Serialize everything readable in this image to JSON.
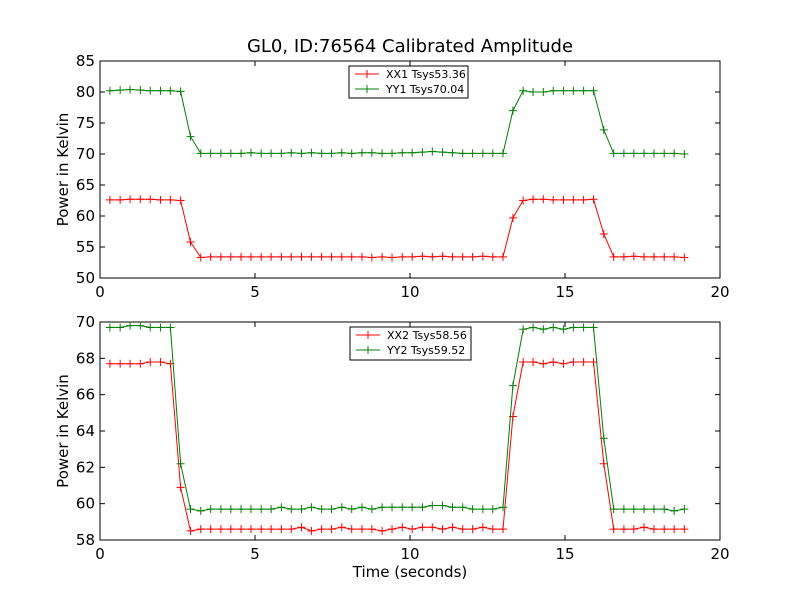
{
  "chart_data": [
    {
      "type": "line",
      "title": "GL0, ID:76564 Calibrated Amplitude",
      "xlabel": "",
      "ylabel": "Power in Kelvin",
      "xlim": [
        0,
        20
      ],
      "ylim": [
        50,
        85
      ],
      "xticks": [
        "0",
        "5",
        "10",
        "15",
        "20"
      ],
      "yticks": [
        "50",
        "55",
        "60",
        "65",
        "70",
        "75",
        "80",
        "85"
      ],
      "grid": false,
      "legend": "top-center",
      "x": [
        0.32,
        0.65,
        0.97,
        1.3,
        1.62,
        1.95,
        2.27,
        2.6,
        2.92,
        3.25,
        3.57,
        3.9,
        4.22,
        4.55,
        4.87,
        5.2,
        5.52,
        5.85,
        6.17,
        6.5,
        6.82,
        7.15,
        7.47,
        7.8,
        8.12,
        8.45,
        8.77,
        9.1,
        9.42,
        9.75,
        10.07,
        10.4,
        10.72,
        11.05,
        11.37,
        11.7,
        12.02,
        12.35,
        12.67,
        13.0,
        13.32,
        13.65,
        13.97,
        14.3,
        14.62,
        14.95,
        15.27,
        15.6,
        15.92,
        16.25,
        16.57,
        16.9,
        17.22,
        17.55,
        17.87,
        18.2,
        18.52,
        18.85
      ],
      "series": [
        {
          "name": "XX1 Tsys53.36",
          "color": "#ff0000",
          "values": [
            62.6,
            62.6,
            62.7,
            62.7,
            62.7,
            62.6,
            62.6,
            62.5,
            55.8,
            53.3,
            53.4,
            53.4,
            53.4,
            53.4,
            53.4,
            53.4,
            53.4,
            53.4,
            53.4,
            53.4,
            53.4,
            53.4,
            53.4,
            53.4,
            53.4,
            53.4,
            53.3,
            53.4,
            53.3,
            53.4,
            53.4,
            53.5,
            53.4,
            53.5,
            53.4,
            53.4,
            53.4,
            53.5,
            53.4,
            53.4,
            59.7,
            62.5,
            62.7,
            62.7,
            62.6,
            62.6,
            62.6,
            62.6,
            62.7,
            57.1,
            53.4,
            53.4,
            53.5,
            53.4,
            53.4,
            53.4,
            53.4,
            53.3
          ]
        },
        {
          "name": "YY1 Tsys70.04",
          "color": "#008000",
          "values": [
            80.2,
            80.3,
            80.4,
            80.3,
            80.2,
            80.2,
            80.2,
            80.1,
            72.8,
            70.1,
            70.1,
            70.1,
            70.1,
            70.1,
            70.2,
            70.1,
            70.1,
            70.1,
            70.2,
            70.1,
            70.2,
            70.1,
            70.1,
            70.2,
            70.1,
            70.2,
            70.2,
            70.1,
            70.1,
            70.2,
            70.2,
            70.3,
            70.4,
            70.3,
            70.2,
            70.1,
            70.1,
            70.1,
            70.1,
            70.1,
            77.0,
            80.2,
            80.0,
            80.0,
            80.2,
            80.2,
            80.2,
            80.2,
            80.2,
            73.9,
            70.1,
            70.1,
            70.1,
            70.1,
            70.1,
            70.1,
            70.1,
            70.0
          ]
        }
      ]
    },
    {
      "type": "line",
      "title": "",
      "xlabel": "Time (seconds)",
      "ylabel": "Power in Kelvin",
      "xlim": [
        0,
        20
      ],
      "ylim": [
        58,
        70
      ],
      "xticks": [
        "0",
        "5",
        "10",
        "15",
        "20"
      ],
      "yticks": [
        "58",
        "60",
        "62",
        "64",
        "66",
        "68",
        "70"
      ],
      "grid": false,
      "legend": "top-center",
      "x": [
        0.32,
        0.65,
        0.97,
        1.3,
        1.62,
        1.95,
        2.27,
        2.6,
        2.92,
        3.25,
        3.57,
        3.9,
        4.22,
        4.55,
        4.87,
        5.2,
        5.52,
        5.85,
        6.17,
        6.5,
        6.82,
        7.15,
        7.47,
        7.8,
        8.12,
        8.45,
        8.77,
        9.1,
        9.42,
        9.75,
        10.07,
        10.4,
        10.72,
        11.05,
        11.37,
        11.7,
        12.02,
        12.35,
        12.67,
        13.0,
        13.32,
        13.65,
        13.97,
        14.3,
        14.62,
        14.95,
        15.27,
        15.6,
        15.92,
        16.25,
        16.57,
        16.9,
        17.22,
        17.55,
        17.87,
        18.2,
        18.52,
        18.85
      ],
      "series": [
        {
          "name": "XX2 Tsys58.56",
          "color": "#ff0000",
          "values": [
            67.7,
            67.7,
            67.7,
            67.7,
            67.8,
            67.8,
            67.7,
            60.9,
            58.5,
            58.6,
            58.6,
            58.6,
            58.6,
            58.6,
            58.6,
            58.6,
            58.6,
            58.6,
            58.6,
            58.7,
            58.5,
            58.6,
            58.6,
            58.7,
            58.6,
            58.6,
            58.6,
            58.5,
            58.6,
            58.7,
            58.6,
            58.7,
            58.7,
            58.6,
            58.7,
            58.6,
            58.6,
            58.7,
            58.6,
            58.6,
            64.8,
            67.8,
            67.8,
            67.7,
            67.8,
            67.7,
            67.8,
            67.8,
            67.8,
            62.2,
            58.6,
            58.6,
            58.6,
            58.7,
            58.6,
            58.6,
            58.6,
            58.6
          ]
        },
        {
          "name": "YY2 Tsys59.52",
          "color": "#008000",
          "values": [
            69.7,
            69.7,
            69.8,
            69.8,
            69.7,
            69.7,
            69.7,
            62.2,
            59.7,
            59.6,
            59.7,
            59.7,
            59.7,
            59.7,
            59.7,
            59.7,
            59.7,
            59.8,
            59.7,
            59.7,
            59.8,
            59.7,
            59.7,
            59.8,
            59.7,
            59.8,
            59.7,
            59.8,
            59.8,
            59.8,
            59.8,
            59.8,
            59.9,
            59.9,
            59.8,
            59.8,
            59.7,
            59.7,
            59.7,
            59.8,
            66.5,
            69.6,
            69.7,
            69.6,
            69.7,
            69.6,
            69.7,
            69.7,
            69.7,
            63.6,
            59.7,
            59.7,
            59.7,
            59.7,
            59.7,
            59.7,
            59.6,
            59.7
          ]
        }
      ]
    }
  ]
}
